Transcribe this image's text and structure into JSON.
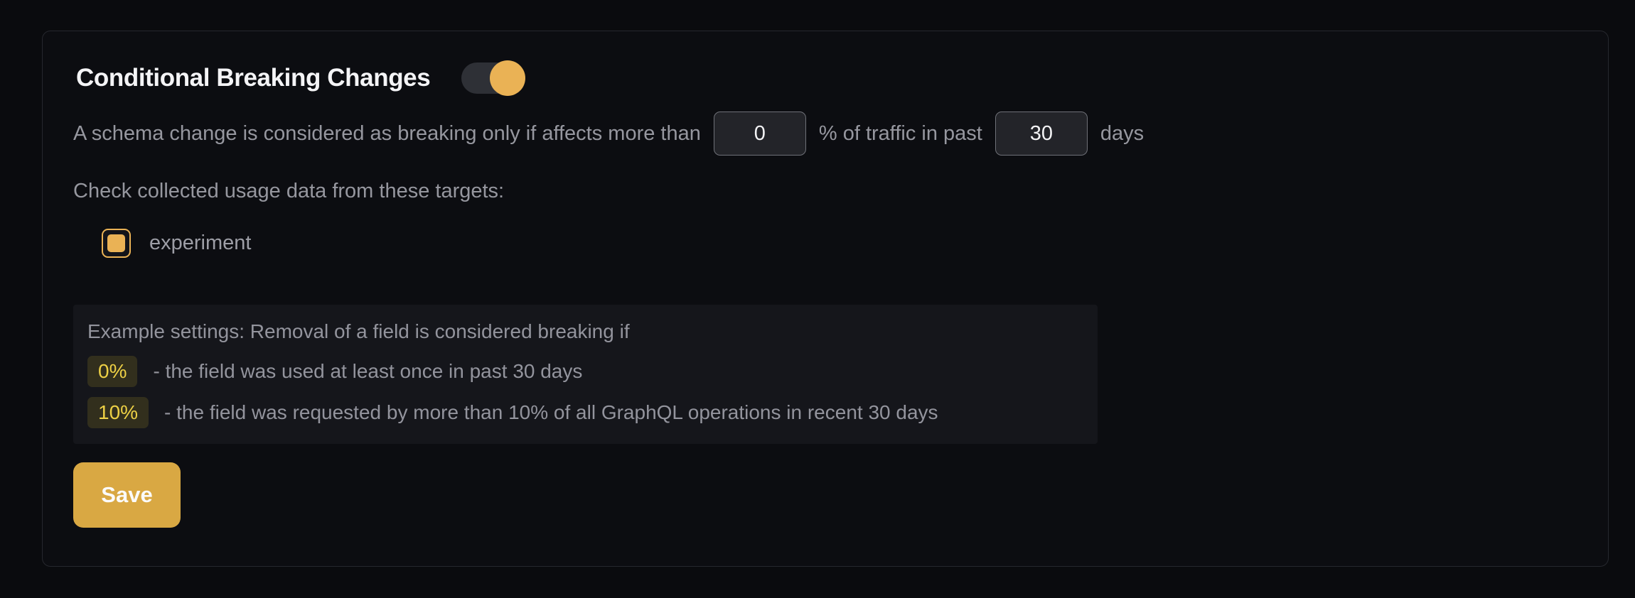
{
  "panel": {
    "title": "Conditional Breaking Changes",
    "toggle": {
      "name": "conditional-breaking-changes",
      "state": "on"
    },
    "description": {
      "prefix": "A schema change is considered as breaking only if affects more than",
      "percentage_value": "0",
      "middle": "% of traffic in past",
      "days_value": "30",
      "suffix": "days"
    },
    "targets": {
      "label": "Check collected usage data from these targets:",
      "items": [
        {
          "label": "experiment",
          "checked": true
        }
      ]
    },
    "example": {
      "intro": "Example settings: Removal of a field is considered breaking if",
      "rules": [
        {
          "badge": "0%",
          "text": "- the field was used at least once in past 30 days"
        },
        {
          "badge": "10%",
          "text": "- the field was requested by more than 10% of all GraphQL operations in recent 30 days"
        }
      ]
    },
    "save_label": "Save"
  },
  "colors": {
    "accent": "#eab255",
    "save_background": "#d9a843",
    "badge_background": "#322f1d",
    "badge_text": "#edd045",
    "panel_border": "#26282e",
    "body_text": "#96979f",
    "background": "#0a0b0e"
  }
}
